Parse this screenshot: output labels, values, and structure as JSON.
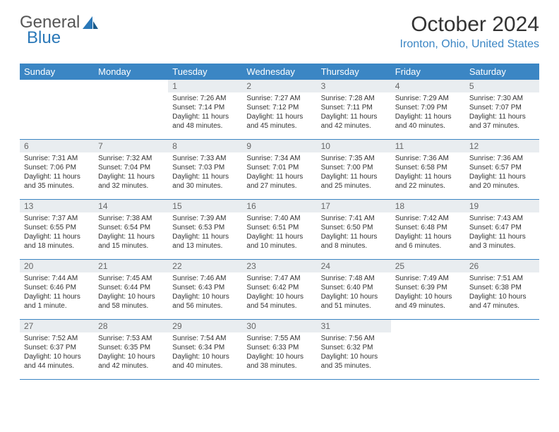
{
  "logo": {
    "text1": "General",
    "text2": "Blue"
  },
  "title": "October 2024",
  "location": "Ironton, Ohio, United States",
  "colors": {
    "header_bg": "#3b86c4",
    "header_text": "#ffffff",
    "daynum_bg": "#e9edf0",
    "location_color": "#3b86c4",
    "rule_color": "#3b86c4"
  },
  "typography": {
    "title_fontsize_pt": 22,
    "location_fontsize_pt": 12,
    "dayheader_fontsize_pt": 10,
    "body_fontsize_pt": 7.5
  },
  "days_of_week": [
    "Sunday",
    "Monday",
    "Tuesday",
    "Wednesday",
    "Thursday",
    "Friday",
    "Saturday"
  ],
  "weeks": [
    [
      null,
      null,
      {
        "n": "1",
        "sr": "Sunrise: 7:26 AM",
        "ss": "Sunset: 7:14 PM",
        "dl": "Daylight: 11 hours and 48 minutes."
      },
      {
        "n": "2",
        "sr": "Sunrise: 7:27 AM",
        "ss": "Sunset: 7:12 PM",
        "dl": "Daylight: 11 hours and 45 minutes."
      },
      {
        "n": "3",
        "sr": "Sunrise: 7:28 AM",
        "ss": "Sunset: 7:11 PM",
        "dl": "Daylight: 11 hours and 42 minutes."
      },
      {
        "n": "4",
        "sr": "Sunrise: 7:29 AM",
        "ss": "Sunset: 7:09 PM",
        "dl": "Daylight: 11 hours and 40 minutes."
      },
      {
        "n": "5",
        "sr": "Sunrise: 7:30 AM",
        "ss": "Sunset: 7:07 PM",
        "dl": "Daylight: 11 hours and 37 minutes."
      }
    ],
    [
      {
        "n": "6",
        "sr": "Sunrise: 7:31 AM",
        "ss": "Sunset: 7:06 PM",
        "dl": "Daylight: 11 hours and 35 minutes."
      },
      {
        "n": "7",
        "sr": "Sunrise: 7:32 AM",
        "ss": "Sunset: 7:04 PM",
        "dl": "Daylight: 11 hours and 32 minutes."
      },
      {
        "n": "8",
        "sr": "Sunrise: 7:33 AM",
        "ss": "Sunset: 7:03 PM",
        "dl": "Daylight: 11 hours and 30 minutes."
      },
      {
        "n": "9",
        "sr": "Sunrise: 7:34 AM",
        "ss": "Sunset: 7:01 PM",
        "dl": "Daylight: 11 hours and 27 minutes."
      },
      {
        "n": "10",
        "sr": "Sunrise: 7:35 AM",
        "ss": "Sunset: 7:00 PM",
        "dl": "Daylight: 11 hours and 25 minutes."
      },
      {
        "n": "11",
        "sr": "Sunrise: 7:36 AM",
        "ss": "Sunset: 6:58 PM",
        "dl": "Daylight: 11 hours and 22 minutes."
      },
      {
        "n": "12",
        "sr": "Sunrise: 7:36 AM",
        "ss": "Sunset: 6:57 PM",
        "dl": "Daylight: 11 hours and 20 minutes."
      }
    ],
    [
      {
        "n": "13",
        "sr": "Sunrise: 7:37 AM",
        "ss": "Sunset: 6:55 PM",
        "dl": "Daylight: 11 hours and 18 minutes."
      },
      {
        "n": "14",
        "sr": "Sunrise: 7:38 AM",
        "ss": "Sunset: 6:54 PM",
        "dl": "Daylight: 11 hours and 15 minutes."
      },
      {
        "n": "15",
        "sr": "Sunrise: 7:39 AM",
        "ss": "Sunset: 6:53 PM",
        "dl": "Daylight: 11 hours and 13 minutes."
      },
      {
        "n": "16",
        "sr": "Sunrise: 7:40 AM",
        "ss": "Sunset: 6:51 PM",
        "dl": "Daylight: 11 hours and 10 minutes."
      },
      {
        "n": "17",
        "sr": "Sunrise: 7:41 AM",
        "ss": "Sunset: 6:50 PM",
        "dl": "Daylight: 11 hours and 8 minutes."
      },
      {
        "n": "18",
        "sr": "Sunrise: 7:42 AM",
        "ss": "Sunset: 6:48 PM",
        "dl": "Daylight: 11 hours and 6 minutes."
      },
      {
        "n": "19",
        "sr": "Sunrise: 7:43 AM",
        "ss": "Sunset: 6:47 PM",
        "dl": "Daylight: 11 hours and 3 minutes."
      }
    ],
    [
      {
        "n": "20",
        "sr": "Sunrise: 7:44 AM",
        "ss": "Sunset: 6:46 PM",
        "dl": "Daylight: 11 hours and 1 minute."
      },
      {
        "n": "21",
        "sr": "Sunrise: 7:45 AM",
        "ss": "Sunset: 6:44 PM",
        "dl": "Daylight: 10 hours and 58 minutes."
      },
      {
        "n": "22",
        "sr": "Sunrise: 7:46 AM",
        "ss": "Sunset: 6:43 PM",
        "dl": "Daylight: 10 hours and 56 minutes."
      },
      {
        "n": "23",
        "sr": "Sunrise: 7:47 AM",
        "ss": "Sunset: 6:42 PM",
        "dl": "Daylight: 10 hours and 54 minutes."
      },
      {
        "n": "24",
        "sr": "Sunrise: 7:48 AM",
        "ss": "Sunset: 6:40 PM",
        "dl": "Daylight: 10 hours and 51 minutes."
      },
      {
        "n": "25",
        "sr": "Sunrise: 7:49 AM",
        "ss": "Sunset: 6:39 PM",
        "dl": "Daylight: 10 hours and 49 minutes."
      },
      {
        "n": "26",
        "sr": "Sunrise: 7:51 AM",
        "ss": "Sunset: 6:38 PM",
        "dl": "Daylight: 10 hours and 47 minutes."
      }
    ],
    [
      {
        "n": "27",
        "sr": "Sunrise: 7:52 AM",
        "ss": "Sunset: 6:37 PM",
        "dl": "Daylight: 10 hours and 44 minutes."
      },
      {
        "n": "28",
        "sr": "Sunrise: 7:53 AM",
        "ss": "Sunset: 6:35 PM",
        "dl": "Daylight: 10 hours and 42 minutes."
      },
      {
        "n": "29",
        "sr": "Sunrise: 7:54 AM",
        "ss": "Sunset: 6:34 PM",
        "dl": "Daylight: 10 hours and 40 minutes."
      },
      {
        "n": "30",
        "sr": "Sunrise: 7:55 AM",
        "ss": "Sunset: 6:33 PM",
        "dl": "Daylight: 10 hours and 38 minutes."
      },
      {
        "n": "31",
        "sr": "Sunrise: 7:56 AM",
        "ss": "Sunset: 6:32 PM",
        "dl": "Daylight: 10 hours and 35 minutes."
      },
      null,
      null
    ]
  ]
}
